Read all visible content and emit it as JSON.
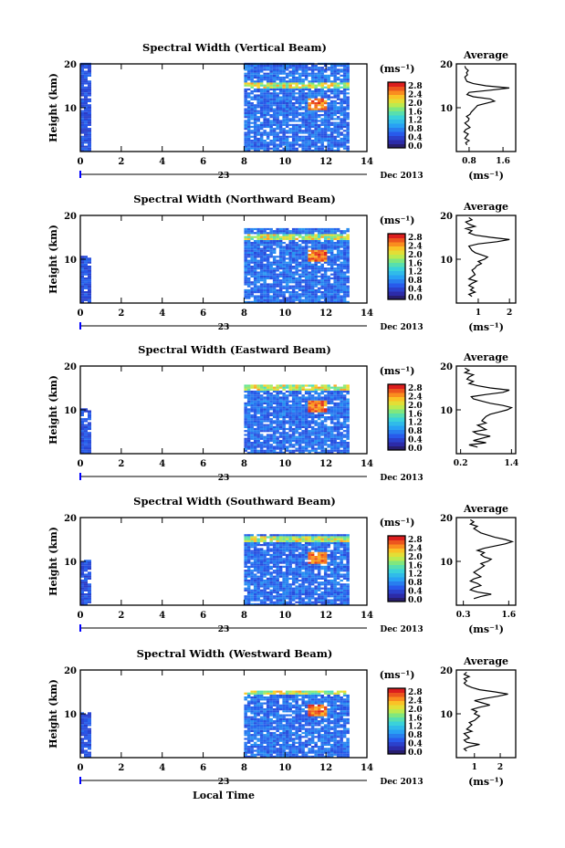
{
  "chart_data": [
    {
      "type": "heatmap",
      "title": "Spectral Width (Vertical Beam)",
      "ylabel": "Height (km)",
      "xticks": [
        0,
        2,
        4,
        6,
        8,
        10,
        12,
        14
      ],
      "yticks": [
        10,
        20
      ],
      "xlim": [
        0,
        14
      ],
      "ylim": [
        0,
        20
      ],
      "date_day": "23",
      "date_label": "Dec 2013",
      "colorbar_unit": "(ms⁻¹)",
      "colorbar_ticks": [
        "2.8",
        "2.4",
        "2.0",
        "1.6",
        "1.2",
        "0.8",
        "0.4",
        "0.0"
      ],
      "data_segments": [
        {
          "x_range": [
            0,
            0.5
          ],
          "y_range": [
            0,
            20
          ],
          "typical_value": 0.6
        },
        {
          "x_range": [
            8,
            13
          ],
          "y_range": [
            0,
            20
          ],
          "typical_value": 0.8
        }
      ],
      "profile": {
        "title": "Average",
        "xticks": [
          "0.8",
          "1.6"
        ],
        "xlim": [
          0.5,
          1.9
        ],
        "xlabel": "(ms⁻¹)",
        "yticks": [
          10,
          20
        ],
        "heights": [
          1.5,
          2.0,
          2.5,
          3.0,
          3.5,
          4.0,
          4.5,
          5.0,
          5.5,
          6.0,
          6.5,
          7.0,
          7.5,
          8.0,
          8.5,
          9.0,
          9.5,
          10.0,
          10.5,
          11.0,
          11.5,
          12.0,
          12.5,
          13.0,
          13.5,
          14.0,
          14.5,
          15.0,
          15.5,
          16.0,
          16.5,
          17.0,
          17.5,
          18.0,
          18.5,
          19.0,
          19.5
        ],
        "values": [
          0.75,
          0.72,
          0.8,
          0.7,
          0.74,
          0.78,
          0.68,
          0.72,
          0.82,
          0.76,
          0.7,
          0.78,
          0.8,
          0.74,
          0.82,
          0.85,
          0.9,
          0.95,
          1.0,
          1.2,
          1.4,
          1.3,
          0.9,
          0.75,
          0.8,
          1.3,
          1.75,
          1.2,
          0.9,
          0.75,
          0.72,
          0.7,
          0.76,
          0.74,
          0.78,
          0.72,
          0.7
        ]
      }
    },
    {
      "type": "heatmap",
      "title": "Spectral Width (Northward Beam)",
      "ylabel": "Height (km)",
      "xticks": [
        0,
        2,
        4,
        6,
        8,
        10,
        12,
        14
      ],
      "yticks": [
        10,
        20
      ],
      "xlim": [
        0,
        14
      ],
      "ylim": [
        0,
        20
      ],
      "date_day": "23",
      "date_label": "Dec 2013",
      "colorbar_unit": "(ms⁻¹)",
      "colorbar_ticks": [
        "2.8",
        "2.4",
        "2.0",
        "1.6",
        "1.2",
        "0.8",
        "0.4",
        "0.0"
      ],
      "data_segments": [
        {
          "x_range": [
            0,
            0.5
          ],
          "y_range": [
            0,
            10.5
          ],
          "typical_value": 0.6
        },
        {
          "x_range": [
            8,
            13
          ],
          "y_range": [
            0,
            17
          ],
          "typical_value": 0.8
        }
      ],
      "profile": {
        "title": "Average",
        "xticks": [
          "1",
          "2"
        ],
        "xlim": [
          0.3,
          2.2
        ],
        "xlabel": "(ms⁻¹)",
        "yticks": [
          10,
          20
        ],
        "heights": [
          1.5,
          2.0,
          2.5,
          3.0,
          3.5,
          4.0,
          4.5,
          5.0,
          5.5,
          6.0,
          6.5,
          7.0,
          7.5,
          8.0,
          8.5,
          9.0,
          9.5,
          10.0,
          10.5,
          11.0,
          11.5,
          12.0,
          12.5,
          13.0,
          13.5,
          14.0,
          14.5,
          15.0,
          15.5,
          16.0,
          16.5,
          17.0,
          17.5,
          18.0,
          18.5,
          19.0,
          19.5
        ],
        "values": [
          0.8,
          0.7,
          0.9,
          0.75,
          0.85,
          0.7,
          0.8,
          0.95,
          0.7,
          0.8,
          0.9,
          0.85,
          0.8,
          0.9,
          0.95,
          1.1,
          1.0,
          1.2,
          1.3,
          1.1,
          0.9,
          0.8,
          0.75,
          0.7,
          1.0,
          1.6,
          2.0,
          1.4,
          0.9,
          0.7,
          0.8,
          0.6,
          0.9,
          0.7,
          0.6,
          0.8,
          0.7
        ]
      }
    },
    {
      "type": "heatmap",
      "title": "Spectral Width (Eastward Beam)",
      "ylabel": "Height (km)",
      "xticks": [
        0,
        2,
        4,
        6,
        8,
        10,
        12,
        14
      ],
      "yticks": [
        10,
        20
      ],
      "xlim": [
        0,
        14
      ],
      "ylim": [
        0,
        20
      ],
      "date_day": "23",
      "date_label": "Dec 2013",
      "colorbar_unit": "(ms⁻¹)",
      "colorbar_ticks": [
        "2.8",
        "2.4",
        "2.0",
        "1.6",
        "1.2",
        "0.8",
        "0.4",
        "0.0"
      ],
      "data_segments": [
        {
          "x_range": [
            0,
            0.5
          ],
          "y_range": [
            0,
            10
          ],
          "typical_value": 0.6
        },
        {
          "x_range": [
            8,
            13
          ],
          "y_range": [
            0,
            15.5
          ],
          "typical_value": 0.8
        }
      ],
      "profile": {
        "title": "Average",
        "xticks": [
          "0.2",
          "1.4"
        ],
        "xlim": [
          0.1,
          1.5
        ],
        "xlabel": "",
        "yticks": [
          10,
          20
        ],
        "heights": [
          1.5,
          2.0,
          2.5,
          3.0,
          3.5,
          4.0,
          4.5,
          5.0,
          5.5,
          6.0,
          6.5,
          7.0,
          7.5,
          8.0,
          8.5,
          9.0,
          9.5,
          10.0,
          10.5,
          11.0,
          11.5,
          12.0,
          12.5,
          13.0,
          13.5,
          14.0,
          14.5,
          15.0,
          15.5,
          16.0,
          16.5,
          17.0,
          17.5,
          18.0,
          18.5,
          19.0,
          19.5
        ],
        "values": [
          0.6,
          0.4,
          0.8,
          0.5,
          0.7,
          0.9,
          0.6,
          0.5,
          0.8,
          0.7,
          0.6,
          0.8,
          0.7,
          0.75,
          0.8,
          0.9,
          1.1,
          1.3,
          1.4,
          1.2,
          0.9,
          0.7,
          0.5,
          0.45,
          0.8,
          1.2,
          1.35,
          0.9,
          0.6,
          0.4,
          0.5,
          0.35,
          0.4,
          0.5,
          0.3,
          0.4,
          0.3
        ]
      }
    },
    {
      "type": "heatmap",
      "title": "Spectral Width (Southward Beam)",
      "ylabel": "Height (km)",
      "xticks": [
        0,
        2,
        4,
        6,
        8,
        10,
        12,
        14
      ],
      "yticks": [
        10,
        20
      ],
      "xlim": [
        0,
        14
      ],
      "ylim": [
        0,
        20
      ],
      "date_day": "23",
      "date_label": "Dec 2013",
      "colorbar_unit": "(ms⁻¹)",
      "colorbar_ticks": [
        "2.8",
        "2.4",
        "2.0",
        "1.6",
        "1.2",
        "0.8",
        "0.4",
        "0.0"
      ],
      "data_segments": [
        {
          "x_range": [
            0,
            0.5
          ],
          "y_range": [
            0,
            10
          ],
          "typical_value": 0.6
        },
        {
          "x_range": [
            8,
            13
          ],
          "y_range": [
            0,
            16
          ],
          "typical_value": 0.8
        }
      ],
      "profile": {
        "title": "Average",
        "xticks": [
          "0.3",
          "1.6"
        ],
        "xlim": [
          0.1,
          1.8
        ],
        "xlabel": "(ms⁻¹)",
        "yticks": [
          10,
          20
        ],
        "heights": [
          1.5,
          2.0,
          2.5,
          3.0,
          3.5,
          4.0,
          4.5,
          5.0,
          5.5,
          6.0,
          6.5,
          7.0,
          7.5,
          8.0,
          8.5,
          9.0,
          9.5,
          10.0,
          10.5,
          11.0,
          11.5,
          12.0,
          12.5,
          13.0,
          13.5,
          14.0,
          14.5,
          15.0,
          15.5,
          16.0,
          16.5,
          17.0,
          17.5,
          18.0,
          18.5,
          19.0,
          19.5
        ],
        "values": [
          0.6,
          0.8,
          1.1,
          0.7,
          0.5,
          0.6,
          0.8,
          0.7,
          0.5,
          0.6,
          0.8,
          0.7,
          0.6,
          0.7,
          0.8,
          0.9,
          0.8,
          1.0,
          1.1,
          0.9,
          0.8,
          0.9,
          0.7,
          0.9,
          1.2,
          1.5,
          1.7,
          1.5,
          1.2,
          1.0,
          0.8,
          0.7,
          0.6,
          0.7,
          0.5,
          0.6,
          0.5
        ]
      }
    },
    {
      "type": "heatmap",
      "title": "Spectral Width (Westward Beam)",
      "ylabel": "Height (km)",
      "xticks": [
        0,
        2,
        4,
        6,
        8,
        10,
        12,
        14
      ],
      "yticks": [
        10,
        20
      ],
      "xlim": [
        0,
        14
      ],
      "ylim": [
        0,
        20
      ],
      "date_day": "23",
      "date_label": "Dec 2013",
      "xlabel": "Local Time",
      "colorbar_unit": "(ms⁻¹)",
      "colorbar_ticks": [
        "2.8",
        "2.4",
        "2.0",
        "1.6",
        "1.2",
        "0.8",
        "0.4",
        "0.0"
      ],
      "data_segments": [
        {
          "x_range": [
            0,
            0.5
          ],
          "y_range": [
            0,
            10
          ],
          "typical_value": 0.6
        },
        {
          "x_range": [
            8,
            13
          ],
          "y_range": [
            0,
            15
          ],
          "typical_value": 0.8
        }
      ],
      "profile": {
        "title": "Average",
        "xticks": [
          "1",
          "2"
        ],
        "xlim": [
          0.3,
          2.6
        ],
        "xlabel": "(ms⁻¹)",
        "yticks": [
          10,
          20
        ],
        "heights": [
          1.5,
          2.0,
          2.5,
          3.0,
          3.5,
          4.0,
          4.5,
          5.0,
          5.5,
          6.0,
          6.5,
          7.0,
          7.5,
          8.0,
          8.5,
          9.0,
          9.5,
          10.0,
          10.5,
          11.0,
          11.5,
          12.0,
          12.5,
          13.0,
          13.5,
          14.0,
          14.5,
          15.0,
          15.5,
          16.0,
          16.5,
          17.0,
          17.5,
          18.0,
          18.5,
          19.0,
          19.5
        ],
        "values": [
          0.7,
          0.6,
          0.8,
          1.2,
          0.7,
          0.6,
          0.8,
          0.7,
          0.6,
          0.9,
          0.7,
          0.8,
          0.9,
          0.8,
          1.0,
          1.1,
          1.2,
          1.0,
          1.1,
          0.9,
          1.2,
          1.6,
          1.3,
          1.0,
          1.4,
          1.9,
          2.3,
          1.8,
          1.2,
          0.9,
          0.7,
          0.6,
          0.7,
          0.6,
          0.8,
          0.6,
          0.7
        ]
      }
    }
  ]
}
